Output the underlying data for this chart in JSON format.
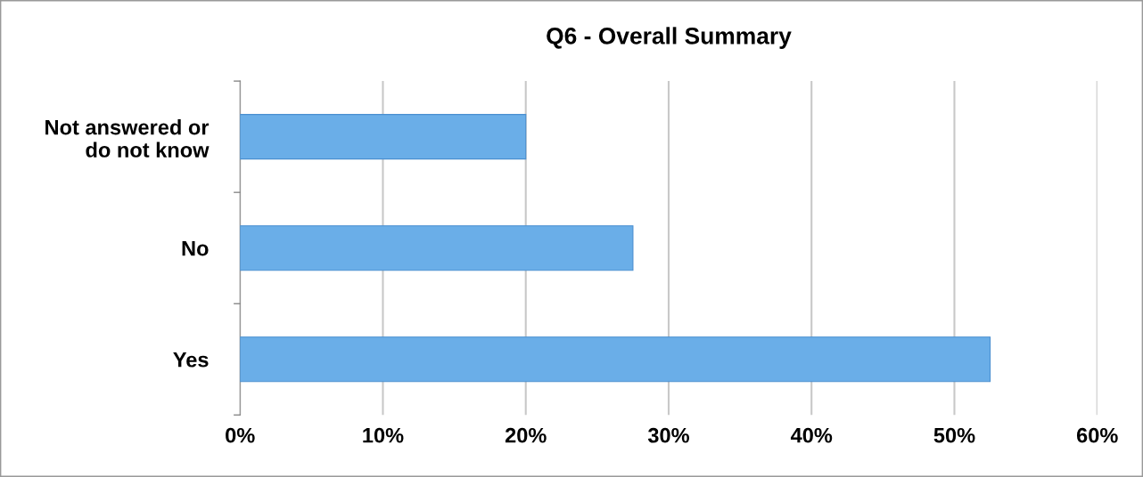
{
  "chart_data": {
    "type": "bar",
    "orientation": "horizontal",
    "title": "Q6 - Overall Summary",
    "categories": [
      "Not answered or\ndo not know",
      "No",
      "Yes"
    ],
    "values": [
      20,
      27.5,
      52.5
    ],
    "color": "#6aaee8",
    "xlim": [
      0,
      60
    ],
    "xticks": [
      {
        "value": 0,
        "label": "0%"
      },
      {
        "value": 10,
        "label": "10%"
      },
      {
        "value": 20,
        "label": "20%"
      },
      {
        "value": 30,
        "label": "30%"
      },
      {
        "value": 40,
        "label": "40%"
      },
      {
        "value": 50,
        "label": "50%"
      },
      {
        "value": 60,
        "label": "60%"
      }
    ],
    "grid": "x"
  }
}
